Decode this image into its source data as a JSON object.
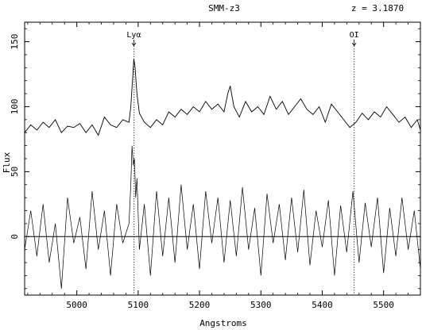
{
  "chart_data": {
    "type": "line",
    "object_label": "SMM-z3",
    "redshift_label": "z = 3.1870",
    "xlabel": "Angstroms",
    "ylabel": "Flux",
    "xlim": [
      4915,
      5560
    ],
    "ylim": [
      -45,
      165
    ],
    "x_ticks": [
      5000,
      5100,
      5200,
      5300,
      5400,
      5500
    ],
    "y_ticks": [
      0,
      50,
      100,
      150
    ],
    "zero_line": 0,
    "grid": false,
    "legend": "none",
    "line_markers": [
      {
        "label": "Lyα",
        "x": 5093
      },
      {
        "label": "OI",
        "x": 5452
      }
    ],
    "series": [
      {
        "role": "smoothed spectrum (offset)",
        "x": [
          4915,
          4925,
          4935,
          4945,
          4955,
          4965,
          4975,
          4985,
          4995,
          5005,
          5015,
          5025,
          5035,
          5045,
          5055,
          5065,
          5075,
          5085,
          5088,
          5091,
          5093,
          5095,
          5098,
          5102,
          5110,
          5120,
          5130,
          5140,
          5150,
          5160,
          5170,
          5180,
          5190,
          5200,
          5210,
          5220,
          5230,
          5240,
          5246,
          5250,
          5256,
          5265,
          5275,
          5285,
          5295,
          5305,
          5315,
          5325,
          5335,
          5345,
          5355,
          5365,
          5375,
          5385,
          5395,
          5405,
          5415,
          5425,
          5435,
          5445,
          5455,
          5465,
          5475,
          5485,
          5495,
          5505,
          5515,
          5525,
          5535,
          5545,
          5555,
          5560
        ],
        "y": [
          80,
          86,
          82,
          88,
          84,
          90,
          80,
          85,
          84,
          87,
          80,
          86,
          78,
          92,
          86,
          84,
          90,
          88,
          100,
          122,
          137,
          130,
          110,
          95,
          88,
          84,
          90,
          86,
          96,
          92,
          98,
          94,
          100,
          96,
          104,
          98,
          102,
          96,
          110,
          116,
          100,
          92,
          104,
          96,
          100,
          94,
          108,
          98,
          104,
          94,
          100,
          106,
          98,
          94,
          100,
          88,
          102,
          96,
          90,
          84,
          88,
          95,
          90,
          96,
          92,
          100,
          94,
          88,
          92,
          84,
          90,
          82
        ]
      },
      {
        "role": "raw spectrum",
        "x": [
          4915,
          4925,
          4935,
          4945,
          4955,
          4965,
          4975,
          4985,
          4995,
          5005,
          5015,
          5025,
          5035,
          5045,
          5055,
          5065,
          5075,
          5085,
          5088,
          5090,
          5092,
          5094,
          5096,
          5098,
          5102,
          5110,
          5120,
          5130,
          5140,
          5150,
          5160,
          5170,
          5180,
          5190,
          5200,
          5210,
          5220,
          5230,
          5240,
          5250,
          5260,
          5270,
          5280,
          5290,
          5300,
          5310,
          5320,
          5330,
          5340,
          5350,
          5360,
          5370,
          5380,
          5390,
          5400,
          5410,
          5420,
          5430,
          5440,
          5450,
          5460,
          5470,
          5480,
          5490,
          5500,
          5510,
          5520,
          5530,
          5540,
          5550,
          5560
        ],
        "y": [
          -10,
          20,
          -15,
          25,
          -20,
          10,
          -40,
          30,
          -5,
          15,
          -25,
          35,
          -10,
          20,
          -30,
          25,
          -5,
          10,
          40,
          70,
          55,
          60,
          30,
          45,
          -10,
          25,
          -30,
          35,
          -15,
          30,
          -20,
          40,
          -10,
          25,
          -25,
          35,
          -5,
          30,
          -20,
          28,
          -15,
          38,
          -10,
          22,
          -30,
          33,
          -5,
          25,
          -18,
          30,
          -12,
          36,
          -22,
          20,
          -8,
          28,
          -30,
          24,
          -12,
          35,
          -20,
          26,
          -8,
          30,
          -28,
          22,
          -15,
          30,
          -10,
          20,
          -25
        ]
      }
    ]
  }
}
